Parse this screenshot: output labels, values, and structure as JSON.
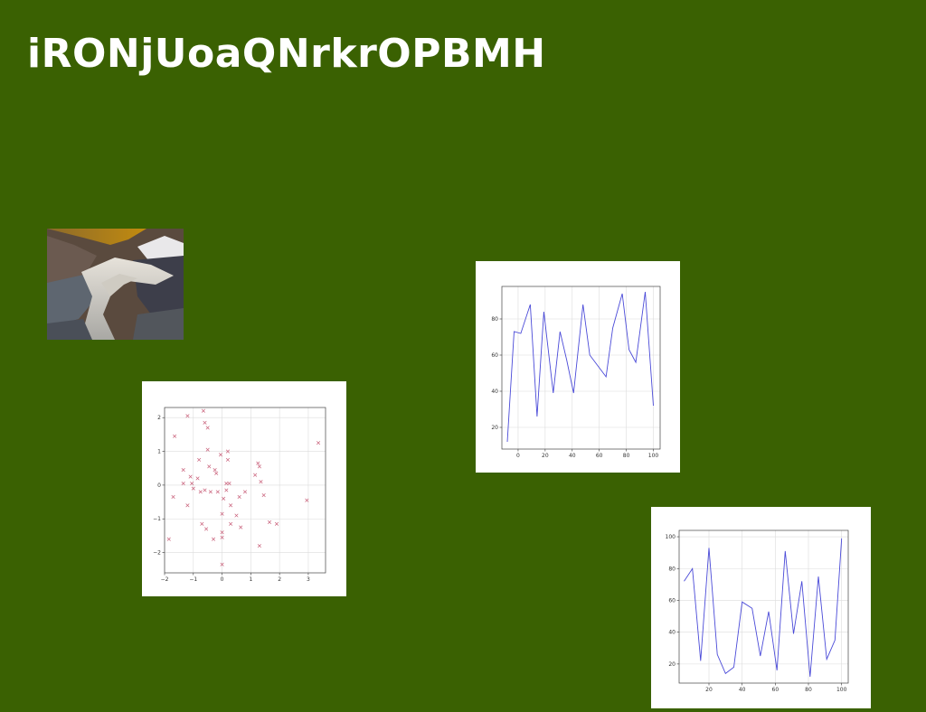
{
  "page": {
    "title": "iRONjUoaQNrkrOPBMH",
    "background": "#3a6102"
  },
  "photo": {
    "icon": "glacier-valley-photo"
  },
  "chart_data": [
    {
      "type": "scatter",
      "marker": "x",
      "color": "#c9607a",
      "xlim": [
        -2,
        3.6
      ],
      "ylim": [
        -2.6,
        2.3
      ],
      "xticks": [
        -2,
        -1,
        0,
        1,
        2,
        3
      ],
      "yticks": [
        -2,
        -1,
        0,
        1,
        2
      ],
      "grid": true,
      "points": [
        [
          -1.85,
          -1.6
        ],
        [
          -1.7,
          -0.35
        ],
        [
          -1.65,
          1.45
        ],
        [
          -1.35,
          0.45
        ],
        [
          -1.35,
          0.05
        ],
        [
          -1.2,
          2.05
        ],
        [
          -1.2,
          -0.6
        ],
        [
          -1.1,
          0.25
        ],
        [
          -1.05,
          0.05
        ],
        [
          -1.0,
          -0.1
        ],
        [
          -0.85,
          0.2
        ],
        [
          -0.8,
          0.75
        ],
        [
          -0.75,
          -0.2
        ],
        [
          -0.7,
          -1.15
        ],
        [
          -0.65,
          2.2
        ],
        [
          -0.6,
          1.85
        ],
        [
          -0.6,
          -0.15
        ],
        [
          -0.55,
          -1.3
        ],
        [
          -0.5,
          1.7
        ],
        [
          -0.5,
          1.05
        ],
        [
          -0.45,
          0.55
        ],
        [
          -0.4,
          -0.2
        ],
        [
          -0.3,
          -1.6
        ],
        [
          -0.25,
          0.45
        ],
        [
          -0.2,
          0.35
        ],
        [
          -0.15,
          -0.2
        ],
        [
          -0.05,
          0.9
        ],
        [
          0.0,
          -1.4
        ],
        [
          0.0,
          -1.55
        ],
        [
          0.0,
          -2.35
        ],
        [
          0.0,
          -0.85
        ],
        [
          0.05,
          -0.4
        ],
        [
          0.15,
          0.05
        ],
        [
          0.15,
          -0.15
        ],
        [
          0.2,
          0.75
        ],
        [
          0.2,
          1.0
        ],
        [
          0.25,
          0.05
        ],
        [
          0.3,
          -0.6
        ],
        [
          0.3,
          -1.15
        ],
        [
          0.5,
          -0.9
        ],
        [
          0.6,
          -0.35
        ],
        [
          0.65,
          -1.25
        ],
        [
          0.8,
          -0.2
        ],
        [
          1.15,
          0.3
        ],
        [
          1.25,
          0.65
        ],
        [
          1.3,
          0.55
        ],
        [
          1.3,
          -1.8
        ],
        [
          1.35,
          0.1
        ],
        [
          1.45,
          -0.3
        ],
        [
          1.65,
          -1.1
        ],
        [
          1.9,
          -1.15
        ],
        [
          2.95,
          -0.45
        ],
        [
          3.35,
          1.25
        ]
      ]
    },
    {
      "type": "line",
      "color": "#4a4ad8",
      "xlim": [
        -12,
        105
      ],
      "ylim": [
        8,
        98
      ],
      "xticks": [
        0,
        20,
        40,
        60,
        80,
        100
      ],
      "yticks": [
        20,
        40,
        60,
        80
      ],
      "grid": true,
      "x": [
        -8,
        -3,
        2,
        9,
        14,
        19,
        26,
        31,
        36,
        41,
        48,
        53,
        58,
        65,
        70,
        77,
        82,
        87,
        94,
        100
      ],
      "y": [
        12,
        73,
        72,
        88,
        26,
        84,
        39,
        73,
        57,
        39,
        88,
        60,
        55,
        48,
        75,
        94,
        63,
        56,
        95,
        32
      ]
    },
    {
      "type": "line",
      "color": "#4a4ad8",
      "xlim": [
        2,
        104
      ],
      "ylim": [
        8,
        104
      ],
      "xticks": [
        20,
        40,
        60,
        80,
        100
      ],
      "yticks": [
        20,
        40,
        60,
        80,
        100
      ],
      "grid": true,
      "x": [
        5,
        10,
        15,
        20,
        25,
        30,
        35,
        40,
        46,
        51,
        56,
        61,
        66,
        71,
        76,
        81,
        86,
        91,
        96,
        100
      ],
      "y": [
        72,
        80,
        22,
        93,
        26,
        14,
        18,
        59,
        55,
        25,
        53,
        16,
        91,
        39,
        72,
        12,
        75,
        23,
        35,
        99
      ]
    }
  ]
}
